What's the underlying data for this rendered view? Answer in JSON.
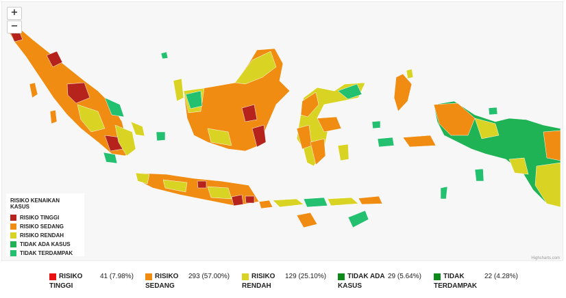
{
  "colors": {
    "tinggi": "#b5231c",
    "sedang": "#f08c12",
    "rendah": "#d9d424",
    "tidak_ada_kasus": "#1fb356",
    "tidak_terdampak": "#23c070",
    "ocean": "#f7f7f7"
  },
  "zoom": {
    "in_label": "+",
    "out_label": "−"
  },
  "legend": {
    "title": "RISIKO KENAIKAN KASUS",
    "items": [
      {
        "label": "RISIKO TINGGI",
        "color": "#b5231c"
      },
      {
        "label": "RISIKO SEDANG",
        "color": "#f08c12"
      },
      {
        "label": "RISIKO RENDAH",
        "color": "#d9d424"
      },
      {
        "label": "TIDAK ADA KASUS",
        "color": "#1fb356"
      },
      {
        "label": "TIDAK TERDAMPAK",
        "color": "#23c070"
      }
    ]
  },
  "credit": "Highcharts.com",
  "stats": [
    {
      "label": "RISIKO TINGGI",
      "value": "41 (7.98%)",
      "color": "#e81010"
    },
    {
      "label": "RISIKO SEDANG",
      "value": "293 (57.00%)",
      "color": "#f08c12"
    },
    {
      "label": "RISIKO RENDAH",
      "value": "129 (25.10%)",
      "color": "#d9d424"
    },
    {
      "label": "TIDAK ADA KASUS",
      "value": "29 (5.64%)",
      "color": "#0d8a1a"
    },
    {
      "label": "TIDAK TERDAMPAK",
      "value": "22 (4.28%)",
      "color": "#0d8a1a"
    }
  ]
}
